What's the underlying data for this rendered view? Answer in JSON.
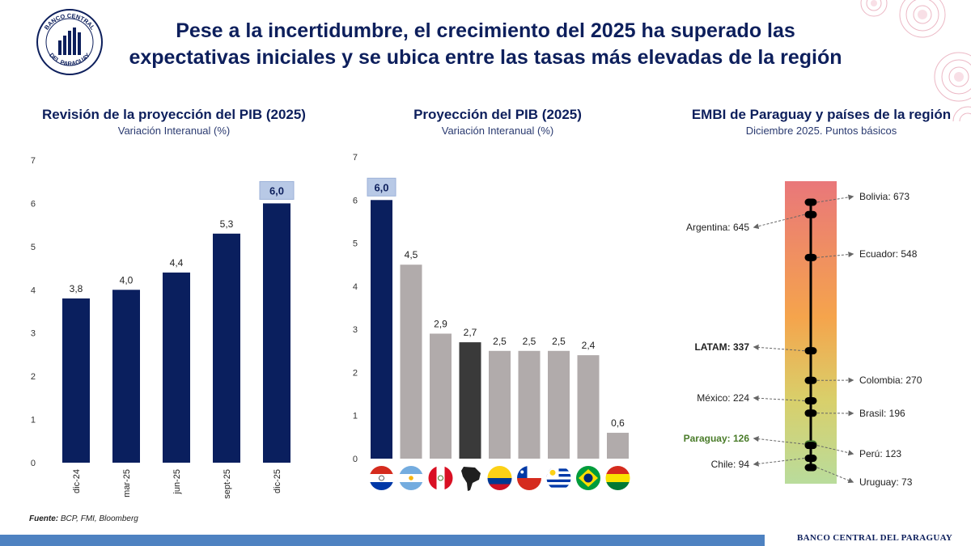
{
  "headline": {
    "line1": "Pese a la incertidumbre, el crecimiento del 2025 ha superado las",
    "line2": "expectativas iniciales y se ubica entre las tasas más elevadas de la región"
  },
  "logo": {
    "text_top": "BANCO CENTRAL",
    "text_bottom": "DEL PARAGUAY"
  },
  "colors": {
    "navy": "#0d1f5c",
    "bar_navy": "#0a1f5e",
    "gray": "#b1abab",
    "dark": "#3a3a3a",
    "highlight": "#b8c9e6",
    "paraguay_green": "#4a7c2a"
  },
  "charts": [
    {
      "title": "Revisión de la proyección del PIB (2025)",
      "subtitle": "Variación Interanual (%)"
    },
    {
      "title": "Proyección del PIB (2025)",
      "subtitle": "Variación Interanual (%)"
    },
    {
      "title": "EMBI de Paraguay y países de la región",
      "subtitle": "Diciembre 2025. Puntos básicos"
    }
  ],
  "chart_data": [
    {
      "type": "bar",
      "title": "Revisión de la proyección del PIB (2025)",
      "subtitle": "Variación Interanual (%)",
      "categories": [
        "dic-24",
        "mar-25",
        "jun-25",
        "sept-25",
        "dic-25"
      ],
      "values": [
        3.8,
        4.0,
        4.4,
        5.3,
        6.0
      ],
      "value_labels": [
        "3,8",
        "4,0",
        "4,4",
        "5,3",
        "6,0"
      ],
      "highlight_index": 4,
      "ylim": [
        0,
        7
      ],
      "yticks": [
        0,
        1,
        2,
        3,
        4,
        5,
        6,
        7
      ],
      "grid": false
    },
    {
      "type": "bar",
      "title": "Proyección del PIB (2025)",
      "subtitle": "Variación Interanual (%)",
      "categories": [
        "paraguay-flag",
        "argentina-flag",
        "peru-flag",
        "south-america-map",
        "colombia-flag",
        "chile-flag",
        "uruguay-flag",
        "brazil-flag",
        "bolivia-flag"
      ],
      "values": [
        6.0,
        4.5,
        2.9,
        2.7,
        2.5,
        2.5,
        2.5,
        2.4,
        0.6
      ],
      "value_labels": [
        "6,0",
        "4,5",
        "2,9",
        "2,7",
        "2,5",
        "2,5",
        "2,5",
        "2,4",
        "0,6"
      ],
      "bar_colors": [
        "#0a1f5e",
        "#b1abab",
        "#b1abab",
        "#3a3a3a",
        "#b1abab",
        "#b1abab",
        "#b1abab",
        "#b1abab",
        "#b1abab"
      ],
      "highlight_index": 0,
      "ylim": [
        0,
        7
      ],
      "yticks": [
        0,
        1,
        2,
        3,
        4,
        5,
        6,
        7
      ],
      "grid": false
    },
    {
      "type": "scatter",
      "title": "EMBI de Paraguay y países de la región",
      "subtitle": "Diciembre 2025. Puntos básicos",
      "ylim": [
        50,
        700
      ],
      "points": [
        {
          "name": "Bolivia",
          "value": 673,
          "label": "Bolivia: 673",
          "side": "right"
        },
        {
          "name": "Argentina",
          "value": 645,
          "label": "Argentina: 645",
          "side": "left"
        },
        {
          "name": "Ecuador",
          "value": 548,
          "label": "Ecuador: 548",
          "side": "right"
        },
        {
          "name": "LATAM",
          "value": 337,
          "label": "LATAM: 337",
          "side": "left",
          "bold": true
        },
        {
          "name": "Colombia",
          "value": 270,
          "label": "Colombia: 270",
          "side": "right"
        },
        {
          "name": "México",
          "value": 224,
          "label": "México: 224",
          "side": "left"
        },
        {
          "name": "Brasil",
          "value": 196,
          "label": "Brasil: 196",
          "side": "right"
        },
        {
          "name": "Paraguay",
          "value": 126,
          "label": "Paraguay: 126",
          "side": "left",
          "bold": true,
          "highlight": true
        },
        {
          "name": "Perú",
          "value": 123,
          "label": "Perú: 123",
          "side": "right"
        },
        {
          "name": "Chile",
          "value": 94,
          "label": "Chile: 94",
          "side": "left"
        },
        {
          "name": "Uruguay",
          "value": 73,
          "label": "Uruguay: 73",
          "side": "right"
        }
      ],
      "gradient_colors": [
        "#e9777a",
        "#f5a44c",
        "#d9cf6a",
        "#b9dc9c"
      ]
    }
  ],
  "source": {
    "label": "Fuente:",
    "text": "BCP, FMI, Bloomberg"
  },
  "footer": {
    "text": "BANCO CENTRAL DEL PARAGUAY"
  }
}
